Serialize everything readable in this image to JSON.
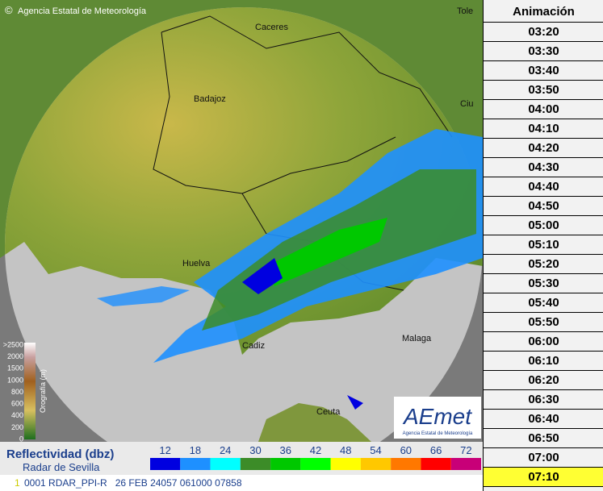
{
  "header": {
    "copyright": "©",
    "agency": "Agencia Estatal de Meteorología"
  },
  "cities": [
    {
      "label": "Caceres"
    },
    {
      "label": "Badajoz"
    },
    {
      "label": "Huelva"
    },
    {
      "label": "Cadiz"
    },
    {
      "label": "Malaga"
    },
    {
      "label": "Ceuta"
    },
    {
      "label": "Tole"
    },
    {
      "label": "Ciu"
    }
  ],
  "orography": {
    "title": "Orografía (m)",
    "labels": [
      ">2500",
      "2000",
      "1500",
      "1000",
      "800",
      "600",
      "400",
      "200",
      "0"
    ]
  },
  "logo": {
    "name": "AEmet",
    "subtitle": "Agencia Estatal de Meteorología"
  },
  "legend": {
    "title": "Reflectividad (dbz)",
    "radar": "Radar de Sevilla",
    "items": [
      {
        "label": "12",
        "color": "#0000e0"
      },
      {
        "label": "18",
        "color": "#1e90ff"
      },
      {
        "label": "24",
        "color": "#00ffff"
      },
      {
        "label": "30",
        "color": "#3c8c28"
      },
      {
        "label": "36",
        "color": "#00c800"
      },
      {
        "label": "42",
        "color": "#00ff00"
      },
      {
        "label": "48",
        "color": "#ffff00"
      },
      {
        "label": "54",
        "color": "#ffc800"
      },
      {
        "label": "60",
        "color": "#ff7800"
      },
      {
        "label": "66",
        "color": "#ff0000"
      },
      {
        "label": "72",
        "color": "#c80078"
      }
    ]
  },
  "status": {
    "index": "1",
    "text": "0001 RDAR_PPI-R   26 FEB 24057 061000 07858"
  },
  "animation": {
    "title": "Animación",
    "times": [
      "03:20",
      "03:30",
      "03:40",
      "03:50",
      "04:00",
      "04:10",
      "04:20",
      "04:30",
      "04:40",
      "04:50",
      "05:00",
      "05:10",
      "05:20",
      "05:30",
      "05:40",
      "05:50",
      "06:00",
      "06:10",
      "06:20",
      "06:30",
      "06:40",
      "06:50",
      "07:00",
      "07:10"
    ],
    "selected": 23
  }
}
